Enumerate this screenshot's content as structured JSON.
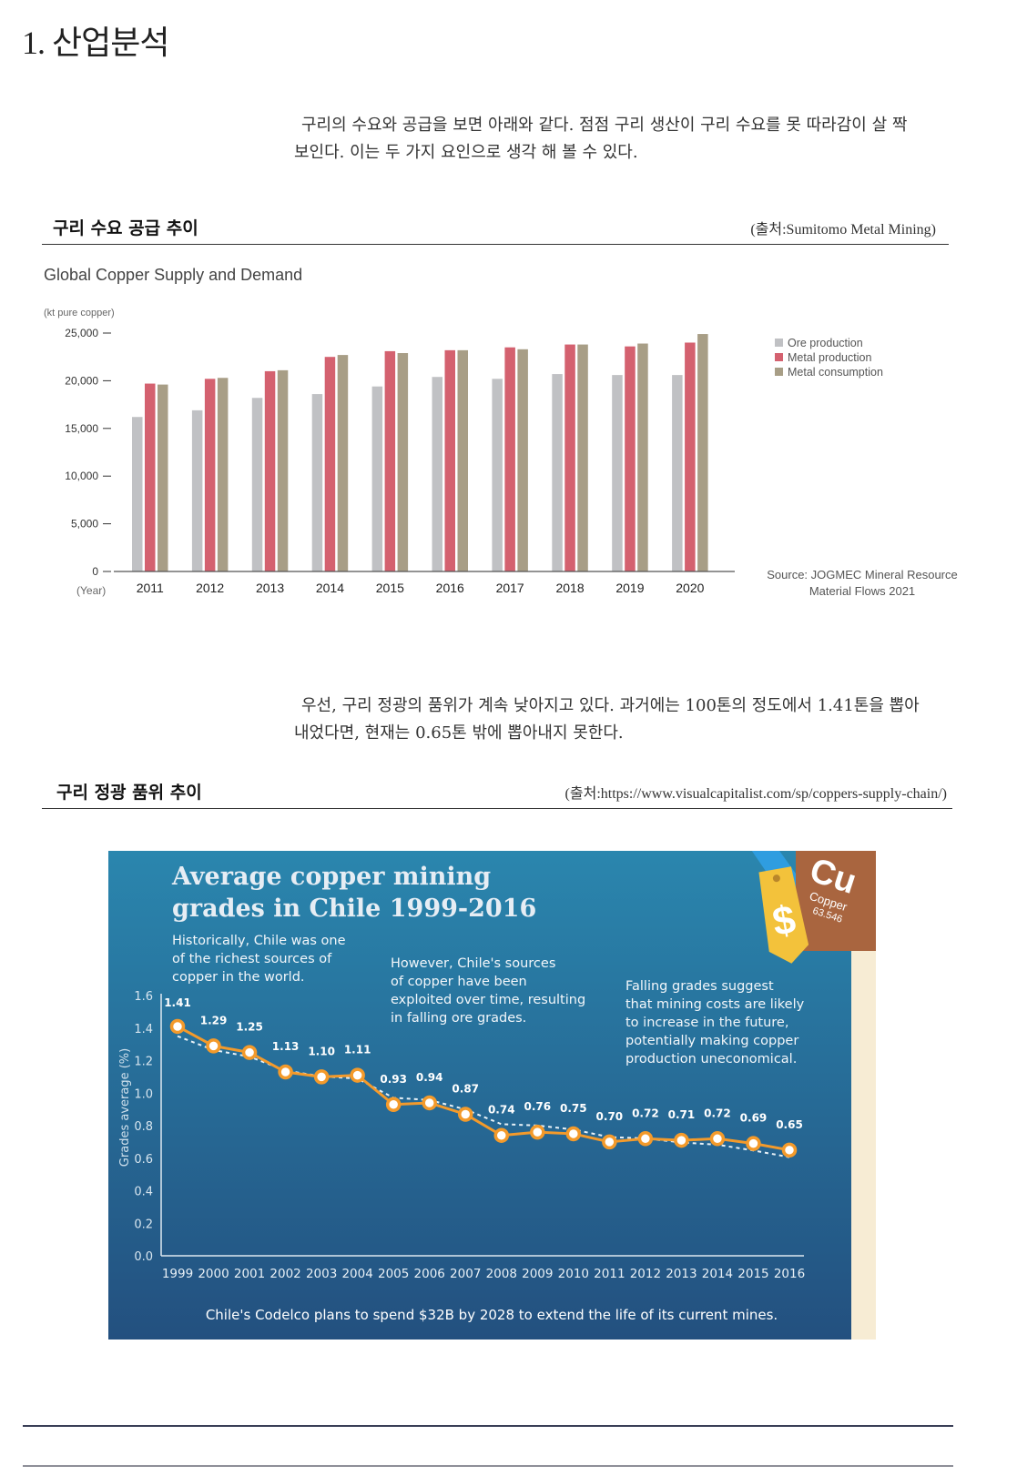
{
  "page_title": "1. 산업분석",
  "intro": {
    "line1": "구리의 수요와 공급을 보면 아래와 같다. 점점 구리 생산이 구리 수요를 못 따라감이 살 짝",
    "line2": "보인다. 이는 두 가지 요인으로 생각 해 볼 수 있다."
  },
  "section1": {
    "title": "구리 수요 공급 추이",
    "source": "(출처:Sumitomo Metal Mining)"
  },
  "section2_text": {
    "line1": "우선, 구리 정광의 품위가 계속 낮아지고 있다. 과거에는 100톤의 정도에서 1.41톤을 뽑아",
    "line2": "내었다면, 현재는 0.65톤 밖에 뽑아내지 못한다."
  },
  "section2": {
    "title": "구리 정광 품위 추이",
    "source": "(출처:https://www.visualcapitalist.com/sp/coppers-supply-chain/)"
  },
  "chart_data": [
    {
      "type": "bar",
      "title": "Global Copper Supply and Demand",
      "ylabel": "(kt pure copper)",
      "xlabel": "(Year)",
      "ylim": [
        0,
        25000
      ],
      "yticks": [
        "0",
        "5,000",
        "10,000",
        "15,000",
        "20,000",
        "25,000"
      ],
      "categories": [
        "2011",
        "2012",
        "2013",
        "2014",
        "2015",
        "2016",
        "2017",
        "2018",
        "2019",
        "2020"
      ],
      "series": [
        {
          "name": "Ore production",
          "color": "#c0c1c4",
          "values": [
            16200,
            16900,
            18200,
            18600,
            19400,
            20400,
            20200,
            20700,
            20600,
            20600
          ]
        },
        {
          "name": "Metal production",
          "color": "#d4616f",
          "values": [
            19700,
            20200,
            21000,
            22500,
            23100,
            23200,
            23500,
            23800,
            23600,
            24000
          ]
        },
        {
          "name": "Metal consumption",
          "color": "#a89e86",
          "values": [
            19600,
            20300,
            21100,
            22700,
            22900,
            23200,
            23300,
            23800,
            23900,
            24900
          ]
        }
      ],
      "source_line1": "Source: JOGMEC Mineral Resource",
      "source_line2": "Material Flows 2021"
    },
    {
      "type": "line",
      "title_line1": "Average copper mining",
      "title_line2": "grades in Chile 1999-2016",
      "ylabel": "Grades average (%)",
      "ylim": [
        0,
        1.6
      ],
      "yticks": [
        "0.0",
        "0.2",
        "0.4",
        "0.6",
        "0.8",
        "1.0",
        "1.2",
        "1.4",
        "1.6"
      ],
      "x": [
        "1999",
        "2000",
        "2001",
        "2002",
        "2003",
        "2004",
        "2005",
        "2006",
        "2007",
        "2008",
        "2009",
        "2010",
        "2011",
        "2012",
        "2013",
        "2014",
        "2015",
        "2016"
      ],
      "values": [
        1.41,
        1.29,
        1.25,
        1.13,
        1.1,
        1.11,
        0.93,
        0.94,
        0.87,
        0.74,
        0.76,
        0.75,
        0.7,
        0.72,
        0.71,
        0.72,
        0.69,
        0.65
      ],
      "labels": [
        "1.41",
        "1.29",
        "1.25",
        "1.13",
        "1.10",
        "1.11",
        "0.93",
        "0.94",
        "0.87",
        "0.74",
        "0.76",
        "0.75",
        "0.70",
        "0.72",
        "0.71",
        "0.72",
        "0.69",
        "0.65"
      ],
      "annotations": [
        [
          "Historically, Chile was one",
          "of the richest sources of",
          "copper in the world."
        ],
        [
          "However, Chile's sources",
          "of copper have been",
          "exploited over time, resulting",
          "in falling ore grades."
        ],
        [
          "Falling grades suggest",
          "that mining costs are likely",
          "to increase in the future,",
          "potentially making copper",
          "production uneconomical."
        ]
      ],
      "footer": "Chile's Codelco plans to spend $32B by 2028 to extend the life of its current mines.",
      "badge_symbol": "Cu",
      "badge_name": "Copper",
      "badge_weight": "63.546",
      "tag_symbol": "$",
      "colors": {
        "line": "#f39a2b",
        "trend": "#e8f2f8",
        "bg_top": "#2a86ae",
        "bg_bottom": "#23507f",
        "badge": "#a9653f",
        "tag": "#f3c23b"
      }
    }
  ]
}
